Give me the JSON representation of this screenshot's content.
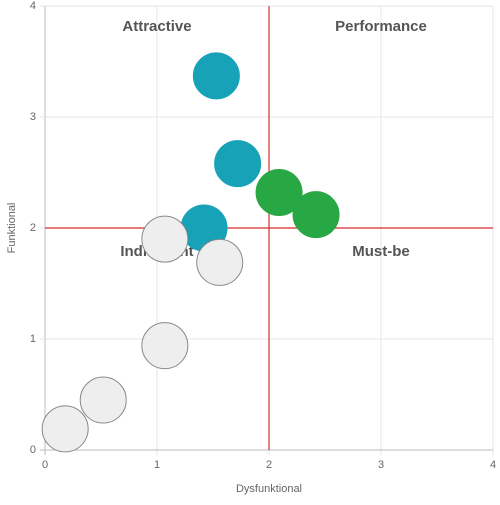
{
  "chart_data": {
    "type": "bubble",
    "x_label": "Dysfunktional",
    "y_label": "Funktional",
    "xlim": [
      0,
      4
    ],
    "ylim": [
      0,
      4
    ],
    "xticks": [
      0,
      1,
      2,
      3,
      4
    ],
    "yticks": [
      0,
      1,
      2,
      3,
      4
    ],
    "grid": true,
    "reference_lines": {
      "x": 2,
      "y": 2,
      "color": "#d32f2f"
    },
    "quadrants": [
      "Attractive",
      "Performance",
      "Indifferent",
      "Must-be"
    ],
    "series": [
      {
        "color": "#17a2b8",
        "x": [
          1.53,
          1.72,
          1.42
        ],
        "y": [
          3.37,
          2.58,
          2.0
        ]
      },
      {
        "color": "#28a745",
        "x": [
          2.09,
          2.42
        ],
        "y": [
          2.32,
          2.12
        ]
      },
      {
        "color": "#eeeeee",
        "x": [
          1.07,
          1.56,
          1.07,
          0.52,
          0.18
        ],
        "y": [
          1.9,
          1.69,
          0.94,
          0.45,
          0.19
        ]
      }
    ]
  }
}
